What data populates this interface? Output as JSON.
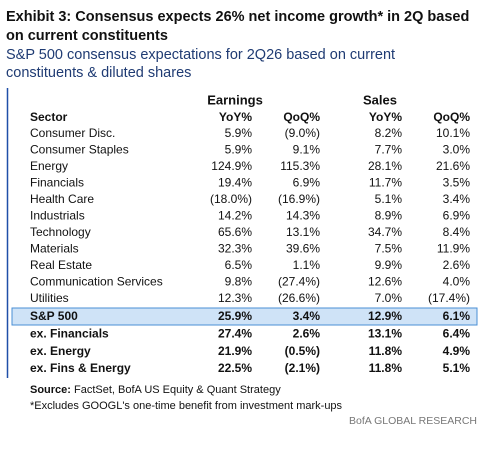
{
  "header": {
    "title": [
      "Exhibit 3: Consensus expects 26% net income growth* in 2Q based",
      "on current constituents"
    ],
    "subtitle": [
      "S&P 500 consensus expectations for 2Q26 based on current",
      "constituents & diluted shares"
    ]
  },
  "table": {
    "groups": [
      "Earnings",
      "Sales"
    ],
    "columns": [
      "Sector",
      "YoY%",
      "QoQ%",
      "YoY%",
      "QoQ%"
    ],
    "rows": [
      [
        "Consumer Disc.",
        "5.9%",
        "(9.0%)",
        "8.2%",
        "10.1%"
      ],
      [
        "Consumer Staples",
        "5.9%",
        "9.1%",
        "7.7%",
        "3.0%"
      ],
      [
        "Energy",
        "124.9%",
        "115.3%",
        "28.1%",
        "21.6%"
      ],
      [
        "Financials",
        "19.4%",
        "6.9%",
        "11.7%",
        "3.5%"
      ],
      [
        "Health Care",
        "(18.0%)",
        "(16.9%)",
        "5.1%",
        "3.4%"
      ],
      [
        "Industrials",
        "14.2%",
        "14.3%",
        "8.9%",
        "6.9%"
      ],
      [
        "Technology",
        "65.6%",
        "13.1%",
        "34.7%",
        "8.4%"
      ],
      [
        "Materials",
        "32.3%",
        "39.6%",
        "7.5%",
        "11.9%"
      ],
      [
        "Real Estate",
        "6.5%",
        "1.1%",
        "9.9%",
        "2.6%"
      ],
      [
        "Communication Services",
        "9.8%",
        "(27.4%)",
        "12.6%",
        "4.0%"
      ],
      [
        "Utilities",
        "12.3%",
        "(26.6%)",
        "7.0%",
        "(17.4%)"
      ],
      [
        "S&P 500",
        "25.9%",
        "3.4%",
        "12.9%",
        "6.1%"
      ],
      [
        "ex. Financials",
        "27.4%",
        "2.6%",
        "13.1%",
        "6.4%"
      ],
      [
        "ex. Energy",
        "21.9%",
        "(0.5%)",
        "11.8%",
        "4.9%"
      ],
      [
        "ex. Fins & Energy",
        "22.5%",
        "(2.1%)",
        "11.8%",
        "5.1%"
      ]
    ]
  },
  "footer": {
    "source_label": "Source:",
    "source": "FactSet, BofA US Equity & Quant Strategy",
    "note": "*Excludes GOOGL's one-time benefit from investment mark-ups",
    "brand": "BofA GLOBAL RESEARCH"
  }
}
